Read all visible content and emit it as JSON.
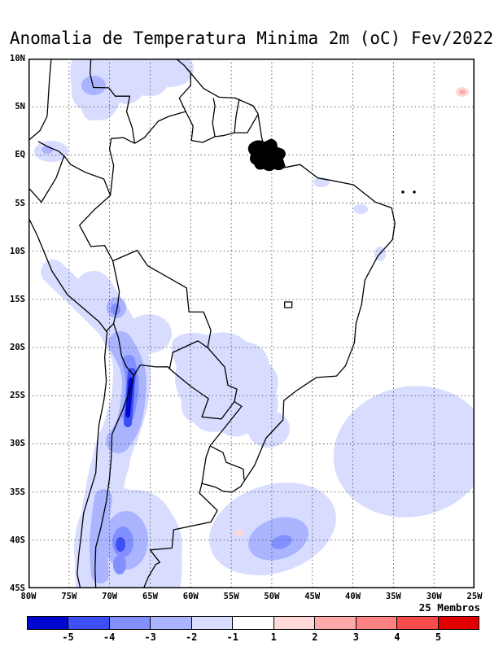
{
  "title": "Anomalia de Temperatura Minima 2m (oC) Fev/2022",
  "axes": {
    "lat_labels": [
      "10N",
      "5N",
      "EQ",
      "5S",
      "10S",
      "15S",
      "20S",
      "25S",
      "30S",
      "35S",
      "40S",
      "45S"
    ],
    "lon_labels": [
      "80W",
      "75W",
      "70W",
      "65W",
      "60W",
      "55W",
      "50W",
      "45W",
      "40W",
      "35W",
      "30W",
      "25W"
    ]
  },
  "colorbar": {
    "members_label": "25 Membros",
    "tick_labels": [
      "-5",
      "-4",
      "-3",
      "-2",
      "-1",
      "1",
      "2",
      "3",
      "4",
      "5"
    ],
    "colors": [
      "#0008cd",
      "#3c50f5",
      "#8290ff",
      "#aab4ff",
      "#d8dcff",
      "#ffffff",
      "#ffd8d8",
      "#ffaaaa",
      "#ff8282",
      "#fa4b4b",
      "#e00000"
    ]
  },
  "chart_data": {
    "type": "heatmap",
    "title": "Anomalia de Temperatura Minima 2m (oC) Fev/2022",
    "variable": "Anomalia de Temperatura Minima 2m",
    "units": "oC",
    "period": "Fev/2022",
    "ensemble_members": 25,
    "lon_range": [
      "80W",
      "25W"
    ],
    "lat_range": [
      "10N",
      "45S"
    ],
    "grid_step_deg": 5,
    "scale_breaks": [
      -5,
      -4,
      -3,
      -2,
      -1,
      1,
      2,
      3,
      4,
      5
    ],
    "regions": [
      {
        "area": "Andes norte do Chile / fronteira Argentina-Bolivia (21S-28S, 67-70W)",
        "anomaly_oC": "-5 a -3"
      },
      {
        "area": "Altiplano Peru/Bolivia e costa do Peru (12S-20S)",
        "anomaly_oC": "-2 a -1"
      },
      {
        "area": "Patagonia norte / Neuquen (36S-45S, 64-73W)",
        "anomaly_oC": "-4 a -2"
      },
      {
        "area": "Venezuela / leste da Colombia / Guianas (4N-10N)",
        "anomaly_oC": "-3 a -1"
      },
      {
        "area": "Paraguai / sul-sudeste do Brasil (19S-29S, 48-60W)",
        "anomaly_oC": "-2 a -1"
      },
      {
        "area": "Atlantico Sul leste (24S-37S, 25W-42W)",
        "anomaly_oC": "-2 a -1"
      },
      {
        "area": "Atlantico Sudoeste (35S-43S, 44W-57W)",
        "anomaly_oC": "-3 a -1"
      },
      {
        "area": "Atlantico tropical (6N-7N, 26W)",
        "anomaly_oC": "+1 a +2"
      },
      {
        "area": "Ponto isolado (39S, 54W)",
        "anomaly_oC": "+1"
      }
    ]
  }
}
